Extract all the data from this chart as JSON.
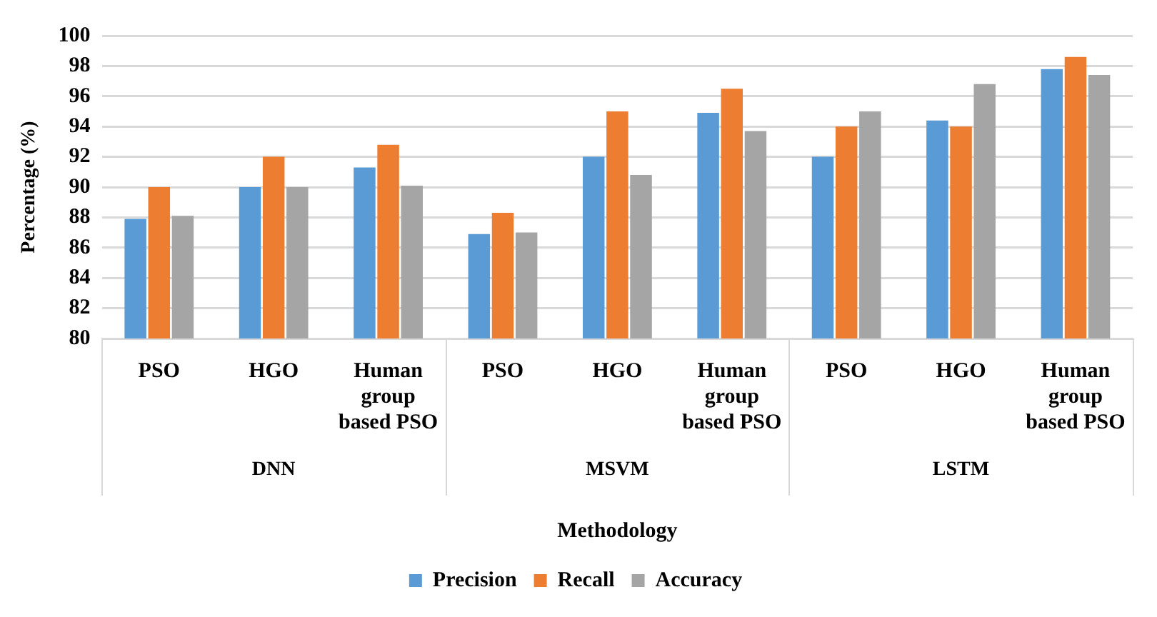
{
  "chart_data": {
    "type": "bar",
    "categories": [
      "PSO",
      "HGO",
      "Human group based PSO",
      "PSO",
      "HGO",
      "Human group based PSO",
      "PSO",
      "HGO",
      "Human group based PSO"
    ],
    "series": [
      {
        "name": "Precision",
        "color": "#5b9bd5",
        "values": [
          87.9,
          90,
          91.3,
          86.9,
          92,
          94.9,
          92,
          94.4,
          97.8
        ]
      },
      {
        "name": "Recall",
        "color": "#ed7d31",
        "values": [
          90,
          92,
          92.8,
          88.3,
          95,
          96.5,
          94,
          94,
          98.6
        ]
      },
      {
        "name": "Accuracy",
        "color": "#a5a5a5",
        "values": [
          88.1,
          90,
          90.1,
          87,
          90.8,
          93.7,
          95,
          96.8,
          97.4
        ]
      }
    ],
    "xlabel": "Methodology",
    "ylabel": "Percentage (%)",
    "annotations": [
      "DNN",
      "MSVM",
      "LSTM"
    ],
    "ylim": [
      80,
      100
    ],
    "yticks": [
      80,
      82,
      84,
      86,
      88,
      90,
      92,
      94,
      96,
      98,
      100
    ],
    "grid": "y",
    "legend": "bottom"
  }
}
